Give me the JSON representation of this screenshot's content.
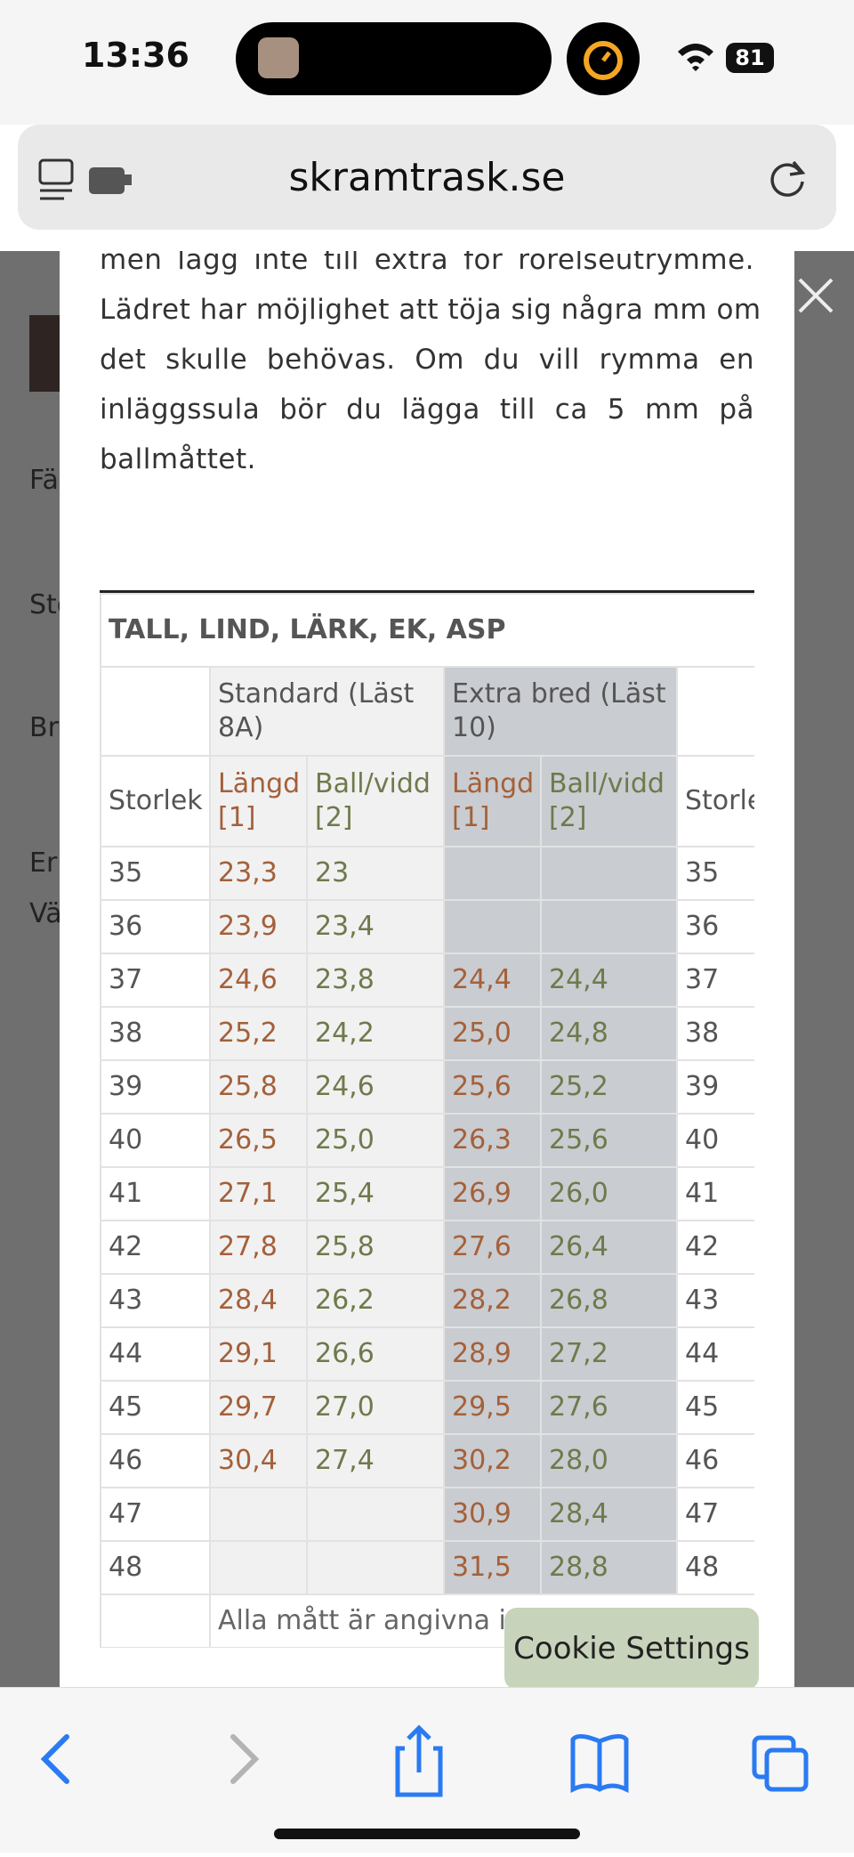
{
  "status_bar": {
    "time": "13:36",
    "battery": "81"
  },
  "browser": {
    "url": "skramtrask.se"
  },
  "background": {
    "labels": [
      "Fä",
      "Sto",
      "Bre",
      "Er",
      "Vä"
    ]
  },
  "modal": {
    "paragraph_lines": [
      "men lägg inte till extra för rörelseutrymme.",
      "Lädret har möjlighet att töja sig några mm om",
      "det skulle behövas. Om du vill rymma en",
      "inläggssula bör du lägga till ca 5 mm på",
      "ballmåttet."
    ],
    "table": {
      "title": "TALL, LIND, LÄRK, EK, ASP",
      "header_row": [
        null,
        "Standard (Läst 8A)",
        "Extra bred (Läst 10)",
        null
      ],
      "subheader_row": [
        "Storlek",
        "Längd [1]",
        "Ball/vidd [2]",
        "Längd [1]",
        "Ball/vidd [2]",
        "Storlek"
      ],
      "rows": [
        [
          "35",
          "23,3",
          "23",
          null,
          null,
          "35"
        ],
        [
          "36",
          "23,9",
          "23,4",
          null,
          null,
          "36"
        ],
        [
          "37",
          "24,6",
          "23,8",
          "24,4",
          "24,4",
          "37"
        ],
        [
          "38",
          "25,2",
          "24,2",
          "25,0",
          "24,8",
          "38"
        ],
        [
          "39",
          "25,8",
          "24,6",
          "25,6",
          "25,2",
          "39"
        ],
        [
          "40",
          "26,5",
          "25,0",
          "26,3",
          "25,6",
          "40"
        ],
        [
          "41",
          "27,1",
          "25,4",
          "26,9",
          "26,0",
          "41"
        ],
        [
          "42",
          "27,8",
          "25,8",
          "27,6",
          "26,4",
          "42"
        ],
        [
          "43",
          "28,4",
          "26,2",
          "28,2",
          "26,8",
          "43"
        ],
        [
          "44",
          "29,1",
          "26,6",
          "28,9",
          "27,2",
          "44"
        ],
        [
          "45",
          "29,7",
          "27,0",
          "29,5",
          "27,6",
          "45"
        ],
        [
          "46",
          "30,4",
          "27,4",
          "30,2",
          "28,0",
          "46"
        ],
        [
          "47",
          null,
          null,
          "30,9",
          "28,4",
          "47"
        ],
        [
          "48",
          null,
          null,
          "31,5",
          "28,8",
          "48"
        ]
      ],
      "footer": "Alla mått är angivna i cm"
    }
  },
  "cookie_button": "Cookie Settings"
}
